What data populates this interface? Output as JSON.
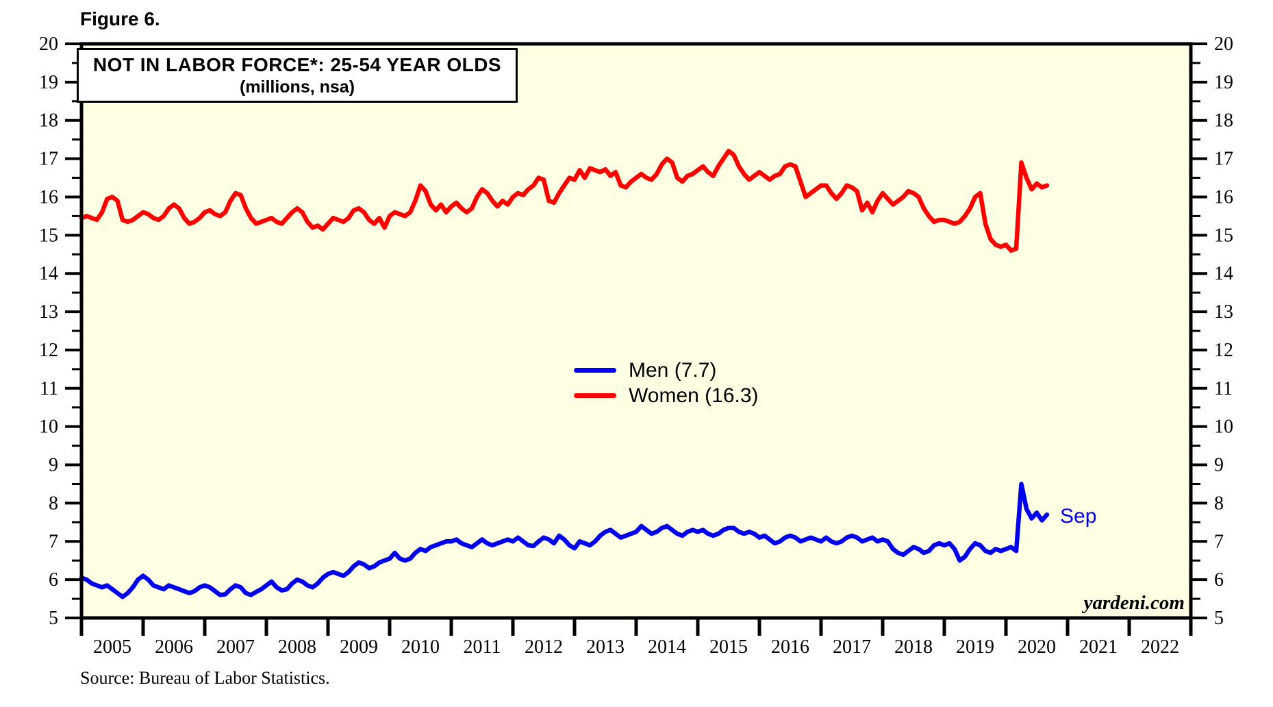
{
  "figure_label": "Figure 6.",
  "chart_title": {
    "line1": "NOT IN LABOR FORCE*: 25-54 YEAR OLDS",
    "line2": "(millions, nsa)"
  },
  "annotation": {
    "text": "Sep",
    "color": "#0000EE"
  },
  "watermark": "yardeni.com",
  "source_line": "Source: Bureau of Labor Statistics.",
  "colors": {
    "plot_background": "#FFFFE3",
    "frame": "#000000",
    "men_line": "#0000EE",
    "women_line": "#FF0000"
  },
  "chart_data": {
    "type": "line",
    "title": "NOT IN LABOR FORCE*: 25-54 YEAR OLDS (millions, nsa)",
    "ylabel": "millions",
    "y_min": 5,
    "y_max": 20,
    "y_major_ticks": [
      5,
      6,
      7,
      8,
      9,
      10,
      11,
      12,
      13,
      14,
      15,
      16,
      17,
      18,
      19,
      20
    ],
    "y_minor_step": 0.5,
    "x_year_labels": [
      "2005",
      "2006",
      "2007",
      "2008",
      "2009",
      "2010",
      "2011",
      "2012",
      "2013",
      "2014",
      "2015",
      "2016",
      "2017",
      "2018",
      "2019",
      "2020",
      "2021",
      "2022"
    ],
    "x_axis_span_months": 216,
    "data_start": "2005-01",
    "data_end": "2020-09",
    "grid": false,
    "legend_position": "center",
    "series": [
      {
        "name": "Men (7.7)",
        "color": "#0000EE",
        "final_value": 7.7,
        "final_month_label": "Sep",
        "values": [
          6.05,
          6.0,
          5.9,
          5.85,
          5.8,
          5.85,
          5.75,
          5.65,
          5.55,
          5.65,
          5.8,
          6.0,
          6.1,
          6.0,
          5.85,
          5.8,
          5.75,
          5.85,
          5.8,
          5.75,
          5.7,
          5.65,
          5.7,
          5.8,
          5.85,
          5.8,
          5.7,
          5.6,
          5.62,
          5.75,
          5.85,
          5.8,
          5.65,
          5.6,
          5.68,
          5.75,
          5.85,
          5.95,
          5.8,
          5.72,
          5.75,
          5.9,
          6.0,
          5.95,
          5.85,
          5.8,
          5.9,
          6.05,
          6.15,
          6.2,
          6.15,
          6.1,
          6.2,
          6.35,
          6.45,
          6.4,
          6.3,
          6.35,
          6.45,
          6.5,
          6.55,
          6.7,
          6.55,
          6.5,
          6.55,
          6.7,
          6.8,
          6.75,
          6.85,
          6.9,
          6.95,
          7.0,
          7.0,
          7.05,
          6.95,
          6.9,
          6.85,
          6.95,
          7.05,
          6.95,
          6.9,
          6.95,
          7.0,
          7.05,
          7.0,
          7.1,
          7.0,
          6.9,
          6.88,
          7.0,
          7.1,
          7.05,
          6.95,
          7.15,
          7.05,
          6.9,
          6.82,
          7.0,
          6.95,
          6.9,
          7.0,
          7.15,
          7.25,
          7.3,
          7.2,
          7.1,
          7.15,
          7.2,
          7.25,
          7.4,
          7.3,
          7.2,
          7.25,
          7.35,
          7.4,
          7.3,
          7.2,
          7.15,
          7.25,
          7.3,
          7.25,
          7.3,
          7.2,
          7.15,
          7.2,
          7.3,
          7.35,
          7.35,
          7.25,
          7.2,
          7.25,
          7.2,
          7.1,
          7.15,
          7.05,
          6.95,
          7.0,
          7.1,
          7.15,
          7.1,
          7.0,
          7.05,
          7.1,
          7.05,
          7.0,
          7.1,
          7.0,
          6.95,
          7.0,
          7.1,
          7.15,
          7.1,
          7.0,
          7.05,
          7.1,
          7.0,
          7.05,
          7.0,
          6.8,
          6.7,
          6.65,
          6.75,
          6.85,
          6.8,
          6.7,
          6.75,
          6.9,
          6.95,
          6.9,
          6.95,
          6.8,
          6.5,
          6.6,
          6.8,
          6.95,
          6.9,
          6.75,
          6.7,
          6.8,
          6.75,
          6.8,
          6.85,
          6.75,
          8.5,
          7.85,
          7.6,
          7.75,
          7.55,
          7.7
        ]
      },
      {
        "name": "Women (16.3)",
        "color": "#FF0000",
        "final_value": 16.3,
        "final_month_label": "Sep",
        "values": [
          15.45,
          15.5,
          15.45,
          15.4,
          15.6,
          15.95,
          16.0,
          15.9,
          15.4,
          15.35,
          15.4,
          15.5,
          15.6,
          15.55,
          15.45,
          15.4,
          15.5,
          15.7,
          15.8,
          15.7,
          15.45,
          15.3,
          15.35,
          15.45,
          15.6,
          15.65,
          15.55,
          15.5,
          15.6,
          15.9,
          16.1,
          16.05,
          15.7,
          15.45,
          15.3,
          15.35,
          15.4,
          15.45,
          15.35,
          15.3,
          15.45,
          15.6,
          15.7,
          15.6,
          15.35,
          15.2,
          15.25,
          15.15,
          15.3,
          15.45,
          15.4,
          15.35,
          15.45,
          15.65,
          15.7,
          15.6,
          15.4,
          15.3,
          15.45,
          15.2,
          15.5,
          15.6,
          15.55,
          15.5,
          15.6,
          15.9,
          16.3,
          16.15,
          15.8,
          15.65,
          15.8,
          15.6,
          15.75,
          15.85,
          15.7,
          15.6,
          15.7,
          16.0,
          16.2,
          16.1,
          15.9,
          15.75,
          15.9,
          15.8,
          16.0,
          16.1,
          16.05,
          16.2,
          16.3,
          16.5,
          16.45,
          15.9,
          15.85,
          16.1,
          16.3,
          16.5,
          16.45,
          16.7,
          16.5,
          16.75,
          16.7,
          16.65,
          16.72,
          16.55,
          16.65,
          16.3,
          16.25,
          16.4,
          16.5,
          16.6,
          16.5,
          16.45,
          16.6,
          16.85,
          17.0,
          16.9,
          16.5,
          16.4,
          16.55,
          16.6,
          16.7,
          16.8,
          16.65,
          16.55,
          16.8,
          17.0,
          17.2,
          17.1,
          16.8,
          16.6,
          16.45,
          16.55,
          16.65,
          16.55,
          16.45,
          16.55,
          16.6,
          16.8,
          16.85,
          16.8,
          16.4,
          16.0,
          16.1,
          16.2,
          16.3,
          16.3,
          16.1,
          15.95,
          16.1,
          16.3,
          16.25,
          16.15,
          15.65,
          15.85,
          15.6,
          15.9,
          16.1,
          15.95,
          15.8,
          15.9,
          16.0,
          16.15,
          16.1,
          16.0,
          15.7,
          15.5,
          15.35,
          15.4,
          15.4,
          15.35,
          15.3,
          15.35,
          15.5,
          15.7,
          16.0,
          16.1,
          15.3,
          14.9,
          14.75,
          14.7,
          14.75,
          14.6,
          14.65,
          16.9,
          16.5,
          16.2,
          16.35,
          16.25,
          16.3
        ]
      }
    ]
  }
}
